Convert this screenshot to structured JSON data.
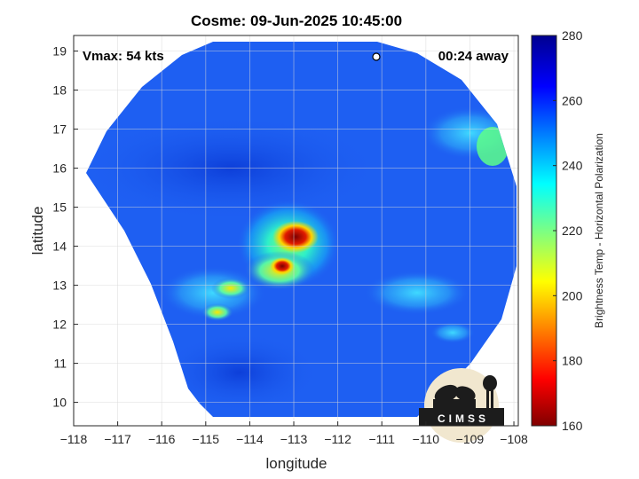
{
  "chart_data": {
    "type": "heatmap",
    "title": "Cosme: 09-Jun-2025 10:45:00",
    "xlabel": "longitude",
    "ylabel": "latitude",
    "xlim": [
      -118,
      -107.9
    ],
    "ylim": [
      9.4,
      19.4
    ],
    "xticks": [
      -118,
      -117,
      -116,
      -115,
      -114,
      -113,
      -112,
      -111,
      -110,
      -109,
      -108
    ],
    "yticks": [
      10,
      11,
      12,
      13,
      14,
      15,
      16,
      17,
      18,
      19
    ],
    "grid": true,
    "colorbar": {
      "label": "Brightness Temp - Horizontal Polarization",
      "range": [
        160,
        280
      ],
      "ticks": [
        160,
        180,
        200,
        220,
        240,
        260,
        280
      ],
      "colormap": "jet"
    },
    "storm_center": {
      "lon": -112.9,
      "lat": 14.2,
      "min_temp": 170
    },
    "features": [
      {
        "lon": -112.9,
        "lat": 14.2,
        "temp": 170
      },
      {
        "lon": -113.3,
        "lat": 13.4,
        "temp": 190
      },
      {
        "lon": -114.6,
        "lat": 13.0,
        "temp": 215
      },
      {
        "lon": -115.0,
        "lat": 12.2,
        "temp": 220
      },
      {
        "lon": -110.2,
        "lat": 13.0,
        "temp": 240
      },
      {
        "lon": -108.9,
        "lat": 16.9,
        "temp": 235
      }
    ],
    "annotations": {
      "vmax": "Vmax: 54 kts",
      "time_offset": "00:24 away"
    }
  },
  "logo": {
    "text": "CIMSS",
    "colors": {
      "sky": "#f1e7cf",
      "silhouette": "#1c1c1c"
    }
  },
  "colors": {
    "background": "#1e5ff2",
    "frame": "#262626",
    "grid": "#d9d9d9"
  }
}
